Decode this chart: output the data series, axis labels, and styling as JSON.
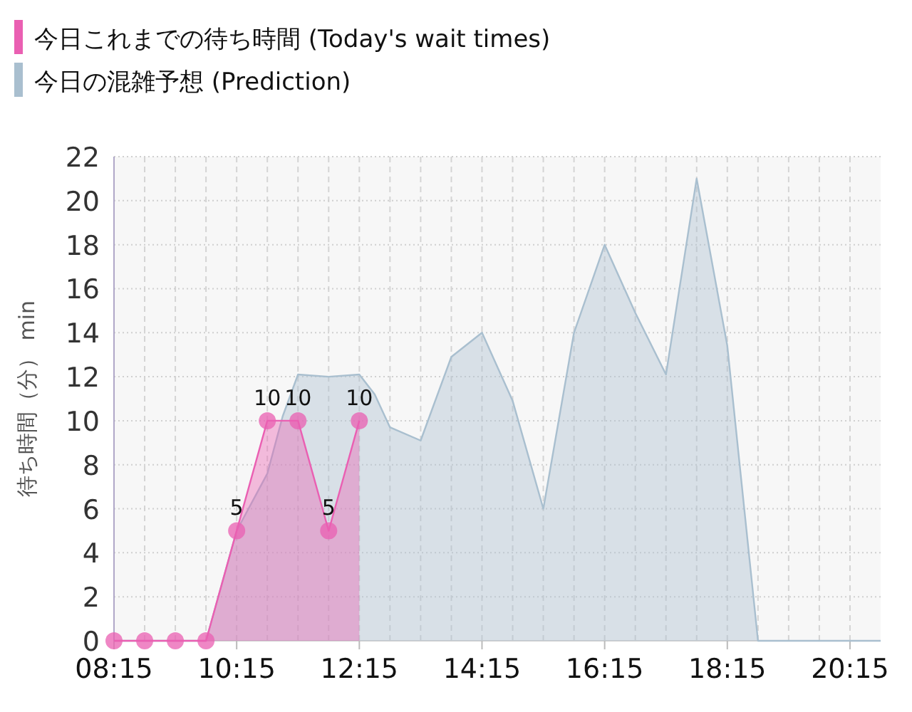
{
  "chart_data": {
    "type": "area",
    "ylabel": "待ち時間（分） min",
    "xlim": [
      8.25,
      20.75
    ],
    "ylim": [
      0,
      22
    ],
    "xticks": [
      {
        "value": 8.25,
        "label": "08:15"
      },
      {
        "value": 8.75,
        "label": null
      },
      {
        "value": 9.25,
        "label": null
      },
      {
        "value": 9.75,
        "label": null
      },
      {
        "value": 10.25,
        "label": "10:15"
      },
      {
        "value": 10.75,
        "label": null
      },
      {
        "value": 11.25,
        "label": null
      },
      {
        "value": 11.75,
        "label": null
      },
      {
        "value": 12.25,
        "label": "12:15"
      },
      {
        "value": 12.75,
        "label": null
      },
      {
        "value": 13.25,
        "label": null
      },
      {
        "value": 13.75,
        "label": null
      },
      {
        "value": 14.25,
        "label": "14:15"
      },
      {
        "value": 14.75,
        "label": null
      },
      {
        "value": 15.25,
        "label": null
      },
      {
        "value": 15.75,
        "label": null
      },
      {
        "value": 16.25,
        "label": "16:15"
      },
      {
        "value": 16.75,
        "label": null
      },
      {
        "value": 17.25,
        "label": null
      },
      {
        "value": 17.75,
        "label": null
      },
      {
        "value": 18.25,
        "label": "18:15"
      },
      {
        "value": 18.75,
        "label": null
      },
      {
        "value": 19.25,
        "label": null
      },
      {
        "value": 19.75,
        "label": null
      },
      {
        "value": 20.25,
        "label": "20:15"
      }
    ],
    "yticks": [
      0,
      2,
      4,
      6,
      8,
      10,
      12,
      14,
      16,
      18,
      20,
      22
    ],
    "grid": true,
    "legend": "top left",
    "series": [
      {
        "name": "今日の混雑予想 (Prediction)",
        "color": "#a9bfcf",
        "x": [
          8.25,
          9.75,
          10.25,
          10.75,
          11.0,
          11.25,
          11.75,
          12.25,
          12.5,
          12.75,
          13.25,
          13.75,
          14.25,
          14.75,
          15.25,
          15.75,
          16.25,
          16.75,
          17.25,
          17.75,
          18.25,
          18.75,
          19.0,
          20.75
        ],
        "values": [
          0,
          0,
          5,
          7.6,
          10.2,
          12.1,
          12.0,
          12.1,
          11.2,
          9.7,
          9.1,
          12.9,
          14.0,
          10.9,
          6.0,
          14.0,
          18.0,
          14.9,
          12.1,
          21.0,
          13.4,
          0,
          0,
          0
        ]
      },
      {
        "name": "今日これまでの待ち時間 (Today's wait times)",
        "color": "#ea5fb2",
        "marker": "circle",
        "x": [
          8.25,
          8.75,
          9.25,
          9.75,
          10.25,
          10.75,
          11.25,
          11.75,
          12.25
        ],
        "values": [
          0,
          0,
          0,
          0,
          5,
          10,
          10,
          5,
          10
        ],
        "value_labels": [
          null,
          null,
          null,
          null,
          "5",
          "10",
          "10",
          "5",
          "10"
        ]
      }
    ]
  }
}
